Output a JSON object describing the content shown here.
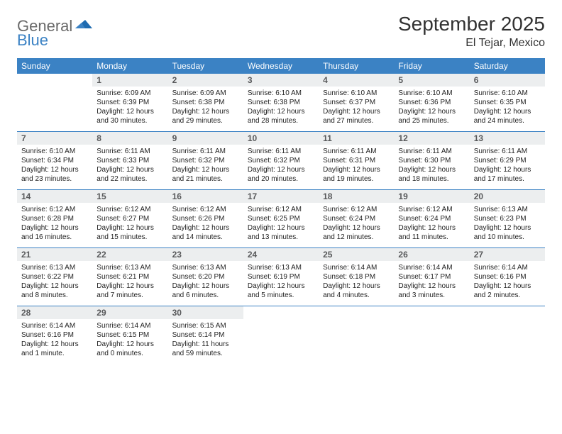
{
  "brand": {
    "part1": "General",
    "part2": "Blue"
  },
  "title": "September 2025",
  "location": "El Tejar, Mexico",
  "colors": {
    "header_bg": "#3b82c4",
    "header_text": "#ffffff",
    "daynum_bg": "#eceeef",
    "daynum_text": "#58595b",
    "body_text": "#232323",
    "logo_gray": "#6a6a6a",
    "logo_blue": "#3b82c4",
    "separator": "#3b82c4"
  },
  "typography": {
    "title_fontsize": 28,
    "location_fontsize": 16,
    "dayhead_fontsize": 12,
    "daynum_fontsize": 12,
    "info_fontsize": 10
  },
  "day_names": [
    "Sunday",
    "Monday",
    "Tuesday",
    "Wednesday",
    "Thursday",
    "Friday",
    "Saturday"
  ],
  "weeks": [
    [
      null,
      {
        "n": "1",
        "sunrise": "Sunrise: 6:09 AM",
        "sunset": "Sunset: 6:39 PM",
        "day1": "Daylight: 12 hours",
        "day2": "and 30 minutes."
      },
      {
        "n": "2",
        "sunrise": "Sunrise: 6:09 AM",
        "sunset": "Sunset: 6:38 PM",
        "day1": "Daylight: 12 hours",
        "day2": "and 29 minutes."
      },
      {
        "n": "3",
        "sunrise": "Sunrise: 6:10 AM",
        "sunset": "Sunset: 6:38 PM",
        "day1": "Daylight: 12 hours",
        "day2": "and 28 minutes."
      },
      {
        "n": "4",
        "sunrise": "Sunrise: 6:10 AM",
        "sunset": "Sunset: 6:37 PM",
        "day1": "Daylight: 12 hours",
        "day2": "and 27 minutes."
      },
      {
        "n": "5",
        "sunrise": "Sunrise: 6:10 AM",
        "sunset": "Sunset: 6:36 PM",
        "day1": "Daylight: 12 hours",
        "day2": "and 25 minutes."
      },
      {
        "n": "6",
        "sunrise": "Sunrise: 6:10 AM",
        "sunset": "Sunset: 6:35 PM",
        "day1": "Daylight: 12 hours",
        "day2": "and 24 minutes."
      }
    ],
    [
      {
        "n": "7",
        "sunrise": "Sunrise: 6:10 AM",
        "sunset": "Sunset: 6:34 PM",
        "day1": "Daylight: 12 hours",
        "day2": "and 23 minutes."
      },
      {
        "n": "8",
        "sunrise": "Sunrise: 6:11 AM",
        "sunset": "Sunset: 6:33 PM",
        "day1": "Daylight: 12 hours",
        "day2": "and 22 minutes."
      },
      {
        "n": "9",
        "sunrise": "Sunrise: 6:11 AM",
        "sunset": "Sunset: 6:32 PM",
        "day1": "Daylight: 12 hours",
        "day2": "and 21 minutes."
      },
      {
        "n": "10",
        "sunrise": "Sunrise: 6:11 AM",
        "sunset": "Sunset: 6:32 PM",
        "day1": "Daylight: 12 hours",
        "day2": "and 20 minutes."
      },
      {
        "n": "11",
        "sunrise": "Sunrise: 6:11 AM",
        "sunset": "Sunset: 6:31 PM",
        "day1": "Daylight: 12 hours",
        "day2": "and 19 minutes."
      },
      {
        "n": "12",
        "sunrise": "Sunrise: 6:11 AM",
        "sunset": "Sunset: 6:30 PM",
        "day1": "Daylight: 12 hours",
        "day2": "and 18 minutes."
      },
      {
        "n": "13",
        "sunrise": "Sunrise: 6:11 AM",
        "sunset": "Sunset: 6:29 PM",
        "day1": "Daylight: 12 hours",
        "day2": "and 17 minutes."
      }
    ],
    [
      {
        "n": "14",
        "sunrise": "Sunrise: 6:12 AM",
        "sunset": "Sunset: 6:28 PM",
        "day1": "Daylight: 12 hours",
        "day2": "and 16 minutes."
      },
      {
        "n": "15",
        "sunrise": "Sunrise: 6:12 AM",
        "sunset": "Sunset: 6:27 PM",
        "day1": "Daylight: 12 hours",
        "day2": "and 15 minutes."
      },
      {
        "n": "16",
        "sunrise": "Sunrise: 6:12 AM",
        "sunset": "Sunset: 6:26 PM",
        "day1": "Daylight: 12 hours",
        "day2": "and 14 minutes."
      },
      {
        "n": "17",
        "sunrise": "Sunrise: 6:12 AM",
        "sunset": "Sunset: 6:25 PM",
        "day1": "Daylight: 12 hours",
        "day2": "and 13 minutes."
      },
      {
        "n": "18",
        "sunrise": "Sunrise: 6:12 AM",
        "sunset": "Sunset: 6:24 PM",
        "day1": "Daylight: 12 hours",
        "day2": "and 12 minutes."
      },
      {
        "n": "19",
        "sunrise": "Sunrise: 6:12 AM",
        "sunset": "Sunset: 6:24 PM",
        "day1": "Daylight: 12 hours",
        "day2": "and 11 minutes."
      },
      {
        "n": "20",
        "sunrise": "Sunrise: 6:13 AM",
        "sunset": "Sunset: 6:23 PM",
        "day1": "Daylight: 12 hours",
        "day2": "and 10 minutes."
      }
    ],
    [
      {
        "n": "21",
        "sunrise": "Sunrise: 6:13 AM",
        "sunset": "Sunset: 6:22 PM",
        "day1": "Daylight: 12 hours",
        "day2": "and 8 minutes."
      },
      {
        "n": "22",
        "sunrise": "Sunrise: 6:13 AM",
        "sunset": "Sunset: 6:21 PM",
        "day1": "Daylight: 12 hours",
        "day2": "and 7 minutes."
      },
      {
        "n": "23",
        "sunrise": "Sunrise: 6:13 AM",
        "sunset": "Sunset: 6:20 PM",
        "day1": "Daylight: 12 hours",
        "day2": "and 6 minutes."
      },
      {
        "n": "24",
        "sunrise": "Sunrise: 6:13 AM",
        "sunset": "Sunset: 6:19 PM",
        "day1": "Daylight: 12 hours",
        "day2": "and 5 minutes."
      },
      {
        "n": "25",
        "sunrise": "Sunrise: 6:14 AM",
        "sunset": "Sunset: 6:18 PM",
        "day1": "Daylight: 12 hours",
        "day2": "and 4 minutes."
      },
      {
        "n": "26",
        "sunrise": "Sunrise: 6:14 AM",
        "sunset": "Sunset: 6:17 PM",
        "day1": "Daylight: 12 hours",
        "day2": "and 3 minutes."
      },
      {
        "n": "27",
        "sunrise": "Sunrise: 6:14 AM",
        "sunset": "Sunset: 6:16 PM",
        "day1": "Daylight: 12 hours",
        "day2": "and 2 minutes."
      }
    ],
    [
      {
        "n": "28",
        "sunrise": "Sunrise: 6:14 AM",
        "sunset": "Sunset: 6:16 PM",
        "day1": "Daylight: 12 hours",
        "day2": "and 1 minute."
      },
      {
        "n": "29",
        "sunrise": "Sunrise: 6:14 AM",
        "sunset": "Sunset: 6:15 PM",
        "day1": "Daylight: 12 hours",
        "day2": "and 0 minutes."
      },
      {
        "n": "30",
        "sunrise": "Sunrise: 6:15 AM",
        "sunset": "Sunset: 6:14 PM",
        "day1": "Daylight: 11 hours",
        "day2": "and 59 minutes."
      },
      null,
      null,
      null,
      null
    ]
  ]
}
